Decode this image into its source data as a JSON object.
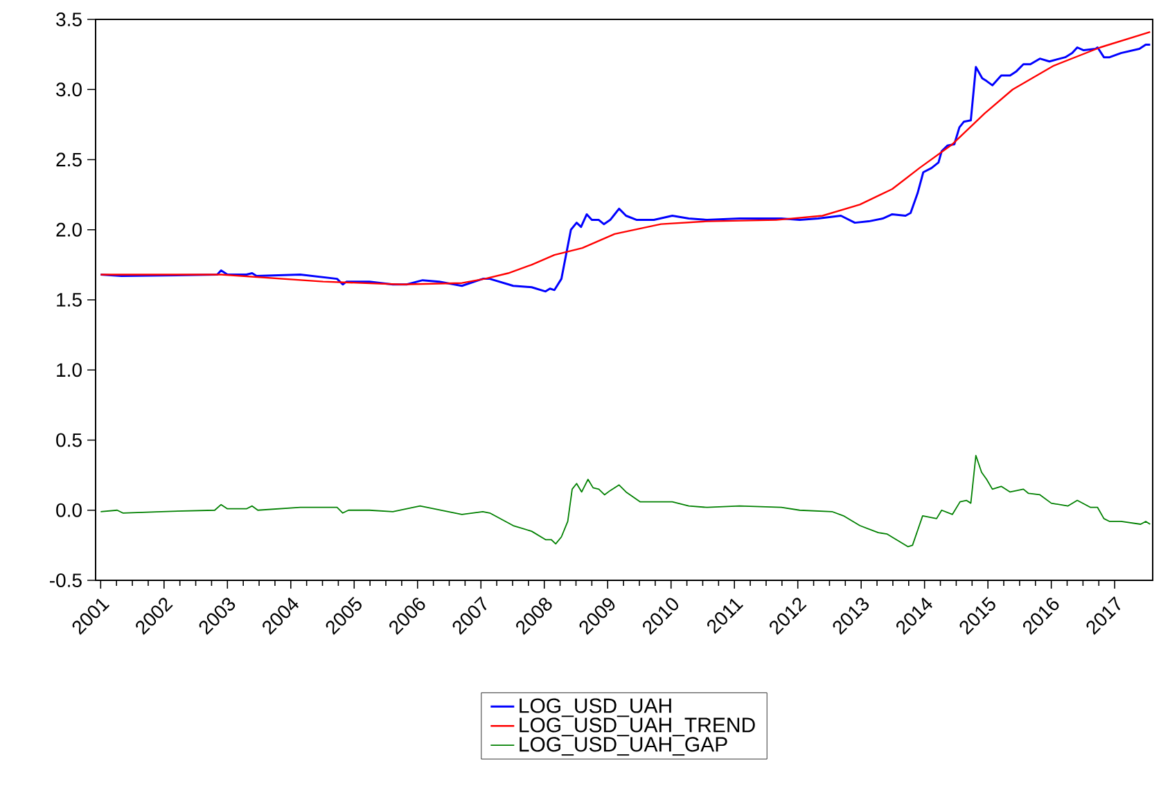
{
  "chart_data": {
    "type": "line",
    "xlim": [
      2000.92,
      2017.6
    ],
    "ylim": [
      -0.5,
      3.5
    ],
    "xticks": [
      2001,
      2002,
      2003,
      2004,
      2005,
      2006,
      2007,
      2008,
      2009,
      2010,
      2011,
      2012,
      2013,
      2014,
      2015,
      2016,
      2017
    ],
    "yticks": [
      {
        "value": -0.5,
        "label": "-0.5"
      },
      {
        "value": 0,
        "label": "0.0"
      },
      {
        "value": 0.5,
        "label": "0.5"
      },
      {
        "value": 1,
        "label": "1.0"
      },
      {
        "value": 1.5,
        "label": "1.5"
      },
      {
        "value": 2,
        "label": "2.0"
      },
      {
        "value": 2.5,
        "label": "2.5"
      },
      {
        "value": 3,
        "label": "3.0"
      },
      {
        "value": 3.5,
        "label": "3.5"
      }
    ],
    "legend": "bottom",
    "marker": "none",
    "line_style": "solid",
    "series": [
      {
        "name": "LOG_USD_UAH",
        "color": "#0000ff",
        "x": [
          2001.0,
          2001.33,
          2002.84,
          2002.9,
          2003.0,
          2003.3,
          2003.39,
          2003.46,
          2004.15,
          2004.73,
          2004.82,
          2004.88,
          2005.24,
          2005.61,
          2005.83,
          2006.08,
          2006.34,
          2006.7,
          2007.03,
          2007.14,
          2007.51,
          2007.8,
          2008.02,
          2008.09,
          2008.16,
          2008.27,
          2008.42,
          2008.51,
          2008.58,
          2008.67,
          2008.75,
          2008.86,
          2008.94,
          2009.04,
          2009.11,
          2009.18,
          2009.29,
          2009.46,
          2009.73,
          2010.02,
          2010.28,
          2010.57,
          2011.08,
          2011.74,
          2012.03,
          2012.32,
          2012.68,
          2012.9,
          2013.12,
          2013.34,
          2013.49,
          2013.7,
          2013.78,
          2013.89,
          2013.98,
          2014.11,
          2014.22,
          2014.27,
          2014.36,
          2014.47,
          2014.55,
          2014.62,
          2014.73,
          2014.81,
          2014.91,
          2014.98,
          2015.07,
          2015.21,
          2015.35,
          2015.45,
          2015.56,
          2015.67,
          2015.82,
          2015.97,
          2016.22,
          2016.33,
          2016.41,
          2016.51,
          2016.7,
          2016.73,
          2016.83,
          2016.92,
          2017.1,
          2017.39,
          2017.49,
          2017.56
        ],
        "values": [
          1.68,
          1.67,
          1.68,
          1.71,
          1.68,
          1.68,
          1.69,
          1.67,
          1.68,
          1.65,
          1.61,
          1.63,
          1.63,
          1.61,
          1.61,
          1.64,
          1.63,
          1.6,
          1.65,
          1.65,
          1.6,
          1.59,
          1.56,
          1.58,
          1.57,
          1.65,
          2.0,
          2.05,
          2.02,
          2.11,
          2.07,
          2.07,
          2.04,
          2.07,
          2.11,
          2.15,
          2.1,
          2.07,
          2.07,
          2.1,
          2.08,
          2.07,
          2.08,
          2.08,
          2.07,
          2.08,
          2.1,
          2.05,
          2.06,
          2.08,
          2.11,
          2.1,
          2.12,
          2.26,
          2.41,
          2.44,
          2.48,
          2.56,
          2.6,
          2.61,
          2.73,
          2.77,
          2.78,
          3.16,
          3.08,
          3.06,
          3.03,
          3.1,
          3.1,
          3.13,
          3.18,
          3.18,
          3.22,
          3.2,
          3.23,
          3.26,
          3.3,
          3.28,
          3.29,
          3.3,
          3.23,
          3.23,
          3.26,
          3.29,
          3.32,
          3.32
        ]
      },
      {
        "name": "LOG_USD_UAH_TREND",
        "color": "#ff0000",
        "x": [
          2001.0,
          2002.9,
          2004.51,
          2005.75,
          2006.7,
          2007.06,
          2007.43,
          2007.8,
          2008.16,
          2008.6,
          2009.11,
          2009.84,
          2010.57,
          2011.66,
          2012.39,
          2012.98,
          2013.49,
          2013.92,
          2014.44,
          2014.95,
          2015.39,
          2016.04,
          2016.77,
          2017.56
        ],
        "values": [
          1.68,
          1.68,
          1.63,
          1.61,
          1.62,
          1.65,
          1.69,
          1.75,
          1.82,
          1.87,
          1.97,
          2.04,
          2.06,
          2.07,
          2.1,
          2.18,
          2.29,
          2.44,
          2.61,
          2.83,
          3.0,
          3.17,
          3.3,
          3.41
        ]
      },
      {
        "name": "LOG_USD_UAH_GAP",
        "color": "#008000",
        "x": [
          2001.0,
          2001.26,
          2001.35,
          2001.96,
          2002.8,
          2002.9,
          2003.0,
          2003.3,
          2003.39,
          2003.48,
          2004.15,
          2004.73,
          2004.82,
          2004.91,
          2005.24,
          2005.61,
          2006.04,
          2006.7,
          2007.03,
          2007.14,
          2007.51,
          2007.8,
          2008.02,
          2008.11,
          2008.18,
          2008.27,
          2008.37,
          2008.44,
          2008.51,
          2008.59,
          2008.69,
          2008.77,
          2008.86,
          2008.95,
          2009.04,
          2009.18,
          2009.29,
          2009.51,
          2010.02,
          2010.28,
          2010.57,
          2011.08,
          2011.74,
          2012.03,
          2012.54,
          2012.72,
          2012.98,
          2013.27,
          2013.41,
          2013.74,
          2013.81,
          2013.97,
          2014.19,
          2014.27,
          2014.44,
          2014.56,
          2014.66,
          2014.73,
          2014.81,
          2014.9,
          2014.98,
          2015.07,
          2015.21,
          2015.35,
          2015.56,
          2015.64,
          2015.82,
          2016.0,
          2016.26,
          2016.41,
          2016.62,
          2016.73,
          2016.83,
          2016.92,
          2017.1,
          2017.41,
          2017.49,
          2017.56
        ],
        "values": [
          -0.01,
          0.0,
          -0.02,
          -0.01,
          0.0,
          0.04,
          0.01,
          0.01,
          0.03,
          0.0,
          0.02,
          0.02,
          -0.02,
          0.0,
          0.0,
          -0.01,
          0.03,
          -0.03,
          -0.01,
          -0.02,
          -0.11,
          -0.15,
          -0.21,
          -0.21,
          -0.24,
          -0.19,
          -0.08,
          0.15,
          0.19,
          0.13,
          0.22,
          0.16,
          0.15,
          0.11,
          0.14,
          0.18,
          0.13,
          0.06,
          0.06,
          0.03,
          0.02,
          0.03,
          0.02,
          0.0,
          -0.01,
          -0.04,
          -0.11,
          -0.16,
          -0.17,
          -0.26,
          -0.25,
          -0.04,
          -0.06,
          0.0,
          -0.03,
          0.06,
          0.07,
          0.05,
          0.39,
          0.27,
          0.22,
          0.15,
          0.17,
          0.13,
          0.15,
          0.12,
          0.11,
          0.05,
          0.03,
          0.07,
          0.02,
          0.02,
          -0.06,
          -0.08,
          -0.08,
          -0.1,
          -0.08,
          -0.1
        ]
      }
    ]
  }
}
